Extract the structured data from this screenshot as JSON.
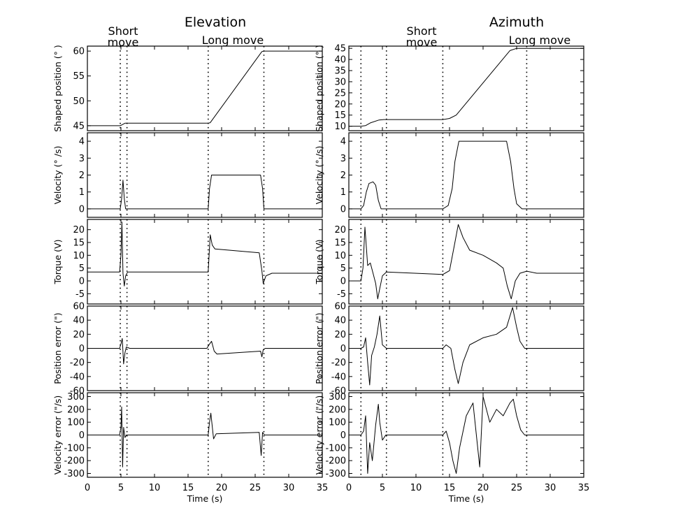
{
  "chart_data": [
    {
      "type": "line",
      "title": "Elevation",
      "annotations": {
        "short_move": [
          "Short",
          "move"
        ],
        "long_move": "Long move"
      },
      "markers": [
        4.9,
        5.9,
        18.0,
        26.3
      ],
      "xlabel": "Time (s)",
      "xlim": [
        0,
        35
      ],
      "xticks": [
        0,
        5,
        10,
        15,
        20,
        25,
        30,
        35
      ],
      "panels": [
        {
          "ylabel": "Shaped position (° )",
          "ylim": [
            44,
            61
          ],
          "yticks": [
            45,
            50,
            55,
            60
          ],
          "series": [
            {
              "name": "shaped position",
              "x": [
                0,
                4.9,
                5.6,
                18.0,
                18.3,
                26.0,
                26.3,
                35
              ],
              "y": [
                45,
                45,
                45.5,
                45.5,
                45.6,
                59.9,
                60,
                60
              ]
            }
          ]
        },
        {
          "ylabel": "Velocity (° /s)",
          "ylim": [
            -0.5,
            4.5
          ],
          "yticks": [
            0,
            1,
            2,
            3,
            4
          ],
          "series": [
            {
              "name": "velocity",
              "x": [
                0,
                4.9,
                5.1,
                5.3,
                5.5,
                5.7,
                18.0,
                18.2,
                18.5,
                25.8,
                26.1,
                26.3,
                35
              ],
              "y": [
                0,
                0,
                0.6,
                1.7,
                0.6,
                0,
                0,
                1.2,
                2.0,
                2.0,
                1.2,
                0,
                0
              ]
            }
          ]
        },
        {
          "ylabel": "Torque (V)",
          "ylim": [
            -9,
            24
          ],
          "yticks": [
            -5,
            0,
            5,
            10,
            15,
            20
          ],
          "series": [
            {
              "name": "torque",
              "x": [
                0,
                4.8,
                5.0,
                5.15,
                5.3,
                5.5,
                5.7,
                6.0,
                18.0,
                18.3,
                18.6,
                19.0,
                25.6,
                26.0,
                26.2,
                26.6,
                27.5,
                35
              ],
              "y": [
                3.5,
                3.5,
                10,
                23,
                3,
                -2,
                2,
                3.5,
                3.5,
                18,
                14,
                12.5,
                11,
                4,
                -1,
                2,
                3,
                3
              ]
            }
          ]
        },
        {
          "ylabel": "Position error (\")",
          "ylim": [
            -60,
            60
          ],
          "yticks": [
            -60,
            -40,
            -20,
            0,
            20,
            40,
            60
          ],
          "series": [
            {
              "name": "position error",
              "x": [
                0,
                4.8,
                5.0,
                5.2,
                5.4,
                5.6,
                5.8,
                6.3,
                17.8,
                18.2,
                18.5,
                18.9,
                19.3,
                25.8,
                26.0,
                26.2,
                26.5,
                35
              ],
              "y": [
                0,
                0,
                6,
                14,
                -22,
                -6,
                2,
                0,
                0,
                6,
                10,
                -4,
                -8,
                -4,
                -12,
                -2,
                0,
                0
              ]
            }
          ]
        },
        {
          "ylabel": "Velocity error (\"/s)",
          "ylim": [
            -330,
            330
          ],
          "yticks": [
            -300,
            -200,
            -100,
            0,
            100,
            200,
            300
          ],
          "series": [
            {
              "name": "velocity error",
              "x": [
                0,
                4.8,
                5.0,
                5.1,
                5.25,
                5.4,
                5.6,
                5.8,
                18.0,
                18.2,
                18.4,
                18.8,
                19.2,
                25.6,
                25.9,
                26.1,
                26.4,
                35
              ],
              "y": [
                0,
                0,
                60,
                220,
                -250,
                60,
                -20,
                0,
                0,
                100,
                170,
                -30,
                10,
                20,
                -160,
                20,
                0,
                0
              ]
            }
          ]
        }
      ]
    },
    {
      "type": "line",
      "title": "Azimuth",
      "annotations": {
        "short_move": [
          "Short",
          "move"
        ],
        "long_move": "Long move"
      },
      "markers": [
        1.8,
        5.6,
        14.0,
        26.5
      ],
      "xlabel": "Time (s)",
      "xlim": [
        0,
        35
      ],
      "xticks": [
        0,
        5,
        10,
        15,
        20,
        25,
        30,
        35
      ],
      "panels": [
        {
          "ylabel": "Shaped position (° )",
          "ylim": [
            8,
            46
          ],
          "yticks": [
            10,
            15,
            20,
            25,
            30,
            35,
            40,
            45
          ],
          "series": [
            {
              "name": "shaped position",
              "x": [
                0,
                1.8,
                2.5,
                3.2,
                4.5,
                5.2,
                14.0,
                15.0,
                16.0,
                24.0,
                25.0,
                26.0,
                35
              ],
              "y": [
                10,
                10,
                10.3,
                11.5,
                12.8,
                13,
                13,
                13.5,
                15,
                44,
                45,
                45,
                45
              ]
            }
          ]
        },
        {
          "ylabel": "Velocity (° /s)",
          "ylim": [
            -0.5,
            4.5
          ],
          "yticks": [
            0,
            1,
            2,
            3,
            4
          ],
          "series": [
            {
              "name": "velocity",
              "x": [
                0,
                1.8,
                2.2,
                2.6,
                3.0,
                3.6,
                4.0,
                4.4,
                4.8,
                14.0,
                14.8,
                15.4,
                15.8,
                16.4,
                23.5,
                24.1,
                24.6,
                25.0,
                25.8,
                35
              ],
              "y": [
                0,
                0,
                0.2,
                1.0,
                1.5,
                1.6,
                1.4,
                0.5,
                0,
                0,
                0.2,
                1.2,
                2.8,
                4.0,
                4.0,
                2.8,
                1.2,
                0.3,
                0,
                0
              ]
            }
          ]
        },
        {
          "ylabel": "Torque (V)",
          "ylim": [
            -9,
            24
          ],
          "yticks": [
            -5,
            0,
            5,
            10,
            15,
            20
          ],
          "series": [
            {
              "name": "torque",
              "x": [
                0,
                1.8,
                2.1,
                2.4,
                2.8,
                3.2,
                3.6,
                4.0,
                4.3,
                4.6,
                5.0,
                5.6,
                14.0,
                15.0,
                15.8,
                16.3,
                17.0,
                18.0,
                20.0,
                22.0,
                23.0,
                23.6,
                24.2,
                24.8,
                25.5,
                26.5,
                28.0,
                35
              ],
              "y": [
                0,
                0,
                5,
                21,
                6,
                7,
                3,
                -1,
                -7,
                -3,
                2,
                3.5,
                2.5,
                4,
                15,
                22,
                17,
                12,
                10,
                7,
                5,
                -2,
                -7,
                0,
                3,
                3.8,
                3,
                3
              ]
            }
          ]
        },
        {
          "ylabel": "Position error (\")",
          "ylim": [
            -60,
            60
          ],
          "yticks": [
            -60,
            -40,
            -20,
            0,
            20,
            40,
            60
          ],
          "series": [
            {
              "name": "position error",
              "x": [
                0,
                1.8,
                2.2,
                2.5,
                2.8,
                3.1,
                3.4,
                3.8,
                4.2,
                4.6,
                5.0,
                5.6,
                14.0,
                14.5,
                15.2,
                15.8,
                16.3,
                17.0,
                18.0,
                20.0,
                22.0,
                23.5,
                24.4,
                25.0,
                25.5,
                26.2,
                35
              ],
              "y": [
                0,
                0,
                2,
                15,
                -20,
                -52,
                -10,
                2,
                20,
                46,
                5,
                0,
                0,
                5,
                0,
                -30,
                -50,
                -20,
                5,
                15,
                20,
                30,
                58,
                30,
                10,
                0,
                0
              ]
            }
          ]
        },
        {
          "ylabel": "Velocity error (\"/s)",
          "ylim": [
            -330,
            330
          ],
          "yticks": [
            -300,
            -200,
            -100,
            0,
            100,
            200,
            300
          ],
          "series": [
            {
              "name": "velocity error",
              "x": [
                0,
                1.8,
                2.2,
                2.5,
                2.8,
                3.1,
                3.5,
                4.0,
                4.4,
                4.6,
                5.0,
                5.5,
                14.0,
                14.5,
                15.0,
                15.5,
                16.0,
                16.5,
                17.5,
                18.5,
                19.5,
                20.0,
                21.0,
                22.0,
                23.0,
                24.0,
                24.5,
                25.0,
                25.6,
                26.2,
                35
              ],
              "y": [
                0,
                0,
                30,
                150,
                -300,
                -60,
                -200,
                80,
                240,
                100,
                -40,
                0,
                0,
                30,
                -60,
                -200,
                -300,
                -100,
                150,
                250,
                -250,
                300,
                100,
                200,
                150,
                250,
                280,
                150,
                40,
                0,
                0
              ]
            }
          ]
        }
      ]
    }
  ]
}
